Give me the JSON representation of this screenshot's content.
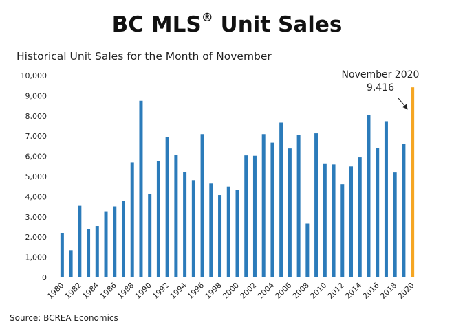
{
  "title_main": "BC MLS",
  "title_sup": "®",
  "title_rest": " Unit Sales",
  "source": "Source: BCREA Economics",
  "chart_data": {
    "type": "bar",
    "title": "BC MLS® Unit Sales",
    "subtitle": "Historical Unit Sales for the Month of November",
    "xlabel": "",
    "ylabel": "",
    "ylim": [
      0,
      10000
    ],
    "yticks": [
      0,
      1000,
      2000,
      3000,
      4000,
      5000,
      6000,
      7000,
      8000,
      9000,
      10000
    ],
    "ytick_labels": [
      "0",
      "1,000",
      "2,000",
      "3,000",
      "4,000",
      "5,000",
      "6,000",
      "7,000",
      "8,000",
      "9,000",
      "10,000"
    ],
    "grid": false,
    "categories": [
      "1980",
      "1981",
      "1982",
      "1983",
      "1984",
      "1985",
      "1986",
      "1987",
      "1988",
      "1989",
      "1990",
      "1991",
      "1992",
      "1993",
      "1994",
      "1995",
      "1996",
      "1997",
      "1998",
      "1999",
      "2000",
      "2001",
      "2002",
      "2003",
      "2004",
      "2005",
      "2006",
      "2007",
      "2008",
      "2009",
      "2010",
      "2011",
      "2012",
      "2013",
      "2014",
      "2015",
      "2016",
      "2017",
      "2018",
      "2019",
      "2020"
    ],
    "xtick_labels": [
      "1980",
      "1982",
      "1984",
      "1986",
      "1988",
      "1990",
      "1992",
      "1994",
      "1996",
      "1998",
      "2000",
      "2002",
      "2004",
      "2006",
      "2008",
      "2010",
      "2012",
      "2014",
      "2016",
      "2018",
      "2020"
    ],
    "values": [
      2200,
      1350,
      3550,
      2400,
      2550,
      3280,
      3520,
      3800,
      5700,
      8750,
      4150,
      5750,
      6950,
      6080,
      5220,
      4820,
      7100,
      4650,
      4080,
      4500,
      4320,
      6050,
      6030,
      7100,
      6680,
      7670,
      6390,
      7050,
      2670,
      7140,
      5620,
      5600,
      4620,
      5500,
      5950,
      8030,
      6420,
      7740,
      5200,
      6630,
      9416
    ],
    "colors": {
      "default": "#2b7bba",
      "highlight": "#f5a623"
    },
    "highlight_category": "2020",
    "annotation": {
      "line1": "November 2020",
      "line2": "9,416"
    }
  }
}
